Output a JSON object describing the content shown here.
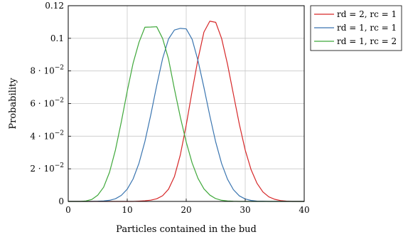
{
  "chart_data": {
    "type": "line",
    "title": "",
    "xlabel": "Particles contained in the bud",
    "ylabel": "Probability",
    "xlim": [
      0,
      40
    ],
    "ylim": [
      0,
      0.12
    ],
    "x_ticks": [
      {
        "value": 0,
        "label": "0"
      },
      {
        "value": 10,
        "label": "10"
      },
      {
        "value": 20,
        "label": "20"
      },
      {
        "value": 30,
        "label": "30"
      },
      {
        "value": 40,
        "label": "40"
      }
    ],
    "y_ticks": [
      {
        "value": 0,
        "label": "0",
        "mantissa": "",
        "exponent": ""
      },
      {
        "value": 0.02,
        "label": "",
        "mantissa": "2 · 10",
        "exponent": "−2"
      },
      {
        "value": 0.04,
        "label": "",
        "mantissa": "4 · 10",
        "exponent": "−2"
      },
      {
        "value": 0.06,
        "label": "",
        "mantissa": "6 · 10",
        "exponent": "−2"
      },
      {
        "value": 0.08,
        "label": "",
        "mantissa": "8 · 10",
        "exponent": "−2"
      },
      {
        "value": 0.1,
        "label": "0.1",
        "mantissa": "",
        "exponent": ""
      },
      {
        "value": 0.12,
        "label": "0.12",
        "mantissa": "",
        "exponent": ""
      }
    ],
    "grid": true,
    "legend_position": "outside-top-right",
    "x": [
      0,
      1,
      2,
      3,
      4,
      5,
      6,
      7,
      8,
      9,
      10,
      11,
      12,
      13,
      14,
      15,
      16,
      17,
      18,
      19,
      20,
      21,
      22,
      23,
      24,
      25,
      26,
      27,
      28,
      29,
      30,
      31,
      32,
      33,
      34,
      35,
      36,
      37,
      38,
      39,
      40
    ],
    "series": [
      {
        "name": "rd = 2, rc = 1",
        "color": "#d62728",
        "values": [
          0,
          0,
          0,
          0,
          0,
          0,
          0,
          0,
          0,
          0,
          0,
          0,
          0.0002,
          0.0004,
          0.0008,
          0.0016,
          0.0035,
          0.0075,
          0.0152,
          0.0285,
          0.0468,
          0.0676,
          0.0873,
          0.1038,
          0.1105,
          0.1098,
          0.0999,
          0.0841,
          0.0657,
          0.0474,
          0.0315,
          0.0194,
          0.0111,
          0.0058,
          0.0028,
          0.0013,
          0.0005,
          0.0002,
          0,
          0,
          0
        ]
      },
      {
        "name": "rd = 1, rc = 1",
        "color": "#3a75b0",
        "values": [
          0,
          0,
          0,
          0,
          0,
          0.0001,
          0.0003,
          0.0007,
          0.0016,
          0.0037,
          0.0075,
          0.0138,
          0.0235,
          0.0368,
          0.0532,
          0.0711,
          0.0876,
          0.0996,
          0.1051,
          0.1061,
          0.1058,
          0.0994,
          0.0863,
          0.0699,
          0.0525,
          0.0364,
          0.0232,
          0.0136,
          0.0072,
          0.0034,
          0.0015,
          0.0006,
          0.0002,
          0.0001,
          0,
          0,
          0,
          0,
          0,
          0,
          0
        ]
      },
      {
        "name": "rd = 1, rc = 2",
        "color": "#3fa83a",
        "values": [
          0,
          0,
          0,
          0.0003,
          0.0012,
          0.0038,
          0.0087,
          0.0179,
          0.0315,
          0.0488,
          0.0676,
          0.0848,
          0.0976,
          0.1068,
          0.1069,
          0.1071,
          0.0999,
          0.0873,
          0.0689,
          0.0517,
          0.0364,
          0.0236,
          0.0141,
          0.0077,
          0.0039,
          0.0017,
          0.0007,
          0.0003,
          0.0001,
          0,
          0,
          0,
          0,
          0,
          0,
          0,
          0,
          0,
          0,
          0,
          0
        ]
      }
    ]
  }
}
